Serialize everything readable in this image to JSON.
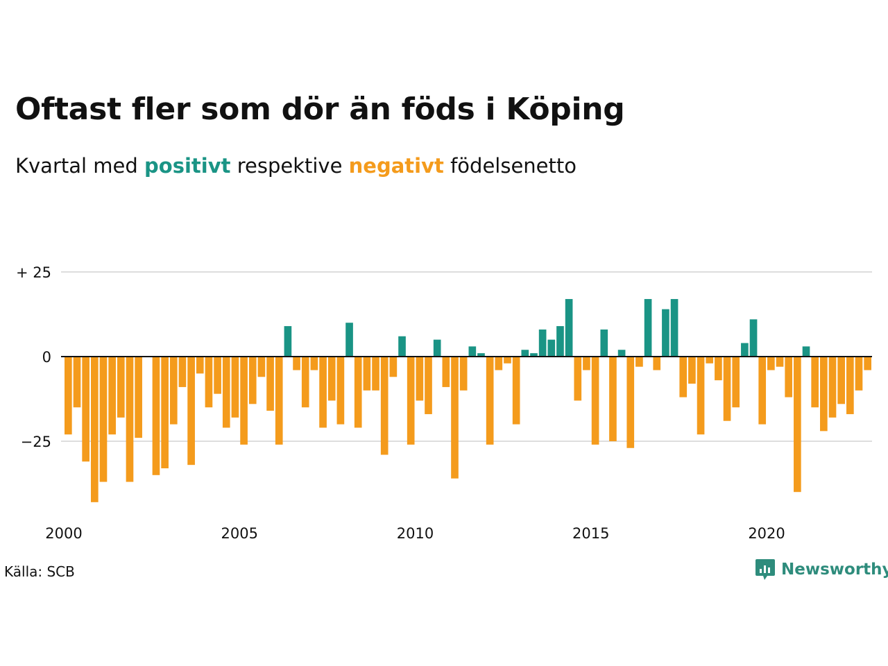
{
  "header": {
    "title": "Oftast fler som dör än föds i Köping",
    "subtitle_pre": "Kvartal med ",
    "subtitle_pos": "positivt",
    "subtitle_mid": " respektive ",
    "subtitle_neg": "negativt",
    "subtitle_post": " födelsenetto"
  },
  "footer": {
    "source": "Källa: SCB",
    "brand": "Newsworthy",
    "brand_icon": "newsworthy-logo-icon"
  },
  "colors": {
    "positive": "#1a9485",
    "negative": "#f49b1c",
    "grid": "#dddddd",
    "axis": "#111111",
    "brand": "#2e8c7c"
  },
  "chart_data": {
    "type": "bar",
    "x_start": "2000 Q1",
    "x_ticks": [
      "2000",
      "2005",
      "2010",
      "2015",
      "2020"
    ],
    "y_ticks": [
      {
        "value": 25,
        "label": "+ 25"
      },
      {
        "value": 0,
        "label": "0"
      },
      {
        "value": -25,
        "label": "−25"
      }
    ],
    "ylim": [
      -45,
      25
    ],
    "grid": true,
    "values": [
      -23,
      -15,
      -31,
      -43,
      -37,
      -23,
      -18,
      -37,
      -24,
      0,
      -35,
      -33,
      -20,
      -9,
      -32,
      -5,
      -15,
      -11,
      -21,
      -18,
      -26,
      -14,
      -6,
      -16,
      -26,
      9,
      -4,
      -15,
      -4,
      -21,
      -13,
      -20,
      10,
      -21,
      -10,
      -10,
      -29,
      -6,
      6,
      -26,
      -13,
      -17,
      5,
      -9,
      -36,
      -10,
      3,
      1,
      -26,
      -4,
      -2,
      -20,
      2,
      1,
      8,
      5,
      9,
      17,
      -13,
      -4,
      -26,
      8,
      -25,
      2,
      -27,
      -3,
      17,
      -4,
      14,
      17,
      -12,
      -8,
      -23,
      -2,
      -7,
      -19,
      -15,
      4,
      11,
      -20,
      -4,
      -3,
      -12,
      -40,
      3,
      -15,
      -22,
      -18,
      -14,
      -17,
      -10,
      -4
    ]
  }
}
